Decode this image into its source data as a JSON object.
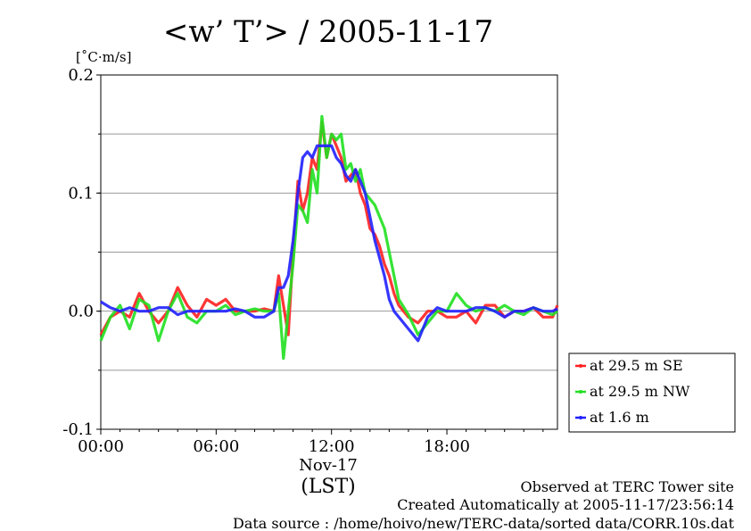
{
  "chart_data": {
    "type": "line",
    "title": "<w’ T’> / 2005-11-17",
    "ylabel": "[˚C·m/s]",
    "xlabel": "(LST)",
    "x_unit": "hour",
    "xlim": [
      0,
      23.75
    ],
    "ylim": [
      -0.1,
      0.2
    ],
    "y_ticks": [
      -0.1,
      0.0,
      0.1,
      0.2
    ],
    "y_tick_labels": [
      "-0.1",
      "0.0",
      "0.1",
      "0.2"
    ],
    "x_ticks": [
      0,
      6,
      12,
      18
    ],
    "x_tick_labels": [
      "00:00",
      "06:00",
      "12:00",
      "18:00"
    ],
    "x_date_label": "Nov-17",
    "grid": "horizontal",
    "legend_position": "right",
    "series": [
      {
        "name": "at 29.5 m SE",
        "color": "#ff2020",
        "x": [
          0,
          0.5,
          1,
          1.5,
          2,
          2.5,
          3,
          3.5,
          4,
          4.5,
          5,
          5.5,
          6,
          6.5,
          7,
          7.5,
          8,
          8.5,
          9,
          9.25,
          9.5,
          9.75,
          10,
          10.25,
          10.5,
          10.75,
          11,
          11.25,
          11.5,
          11.75,
          12,
          12.25,
          12.5,
          12.75,
          13,
          13.25,
          13.5,
          13.75,
          14,
          14.25,
          14.5,
          14.75,
          15,
          15.25,
          15.5,
          16,
          16.5,
          17,
          17.5,
          18,
          18.5,
          19,
          19.5,
          20,
          20.5,
          21,
          21.5,
          22,
          22.5,
          23,
          23.5,
          23.75
        ],
        "values": [
          -0.02,
          -0.005,
          0.0,
          -0.005,
          0.015,
          0.0,
          -0.01,
          0.0,
          0.02,
          0.005,
          -0.005,
          0.01,
          0.005,
          0.01,
          0.0,
          0.0,
          0.0,
          0.002,
          0.0,
          0.03,
          0.005,
          -0.02,
          0.05,
          0.11,
          0.085,
          0.1,
          0.13,
          0.12,
          0.16,
          0.13,
          0.15,
          0.14,
          0.13,
          0.11,
          0.115,
          0.12,
          0.1,
          0.09,
          0.07,
          0.065,
          0.055,
          0.04,
          0.03,
          0.015,
          0.005,
          -0.005,
          -0.01,
          0.0,
          0.0,
          -0.005,
          -0.005,
          0.0,
          -0.01,
          0.005,
          0.005,
          -0.005,
          0.0,
          0.0,
          0.003,
          -0.005,
          -0.005,
          0.005
        ]
      },
      {
        "name": "at 29.5 m NW",
        "color": "#20e020",
        "x": [
          0,
          0.5,
          1,
          1.5,
          2,
          2.5,
          3,
          3.5,
          4,
          4.5,
          5,
          5.5,
          6,
          6.5,
          7,
          7.5,
          8,
          8.5,
          9,
          9.25,
          9.5,
          9.75,
          10,
          10.25,
          10.5,
          10.75,
          11,
          11.25,
          11.5,
          11.75,
          12,
          12.25,
          12.5,
          12.75,
          13,
          13.25,
          13.5,
          13.75,
          14,
          14.25,
          14.5,
          14.75,
          15,
          15.25,
          15.5,
          16,
          16.5,
          17,
          17.5,
          18,
          18.5,
          19,
          19.5,
          20,
          20.5,
          21,
          21.5,
          22,
          22.5,
          23,
          23.5,
          23.75
        ],
        "values": [
          -0.025,
          -0.005,
          0.005,
          -0.015,
          0.01,
          0.005,
          -0.025,
          0.0,
          0.015,
          -0.005,
          -0.01,
          0.0,
          0.0,
          0.005,
          -0.003,
          0.0,
          0.002,
          0.0,
          0.0,
          0.015,
          -0.04,
          0.0,
          0.04,
          0.09,
          0.085,
          0.075,
          0.12,
          0.1,
          0.165,
          0.13,
          0.15,
          0.145,
          0.15,
          0.12,
          0.125,
          0.11,
          0.12,
          0.1,
          0.095,
          0.09,
          0.08,
          0.07,
          0.05,
          0.03,
          0.01,
          -0.003,
          -0.02,
          -0.01,
          0.0,
          0.0,
          0.015,
          0.005,
          0.0,
          0.003,
          0.0,
          0.005,
          0.0,
          -0.003,
          0.003,
          0.0,
          -0.003,
          0.0
        ]
      },
      {
        "name": "at 1.6 m",
        "color": "#2020ff",
        "x": [
          0,
          0.5,
          1,
          1.5,
          2,
          2.5,
          3,
          3.5,
          4,
          4.5,
          5,
          5.5,
          6,
          6.5,
          7,
          7.5,
          8,
          8.5,
          9,
          9.25,
          9.5,
          9.75,
          10,
          10.25,
          10.5,
          10.75,
          11,
          11.25,
          11.5,
          11.75,
          12,
          12.25,
          12.5,
          12.75,
          13,
          13.25,
          13.5,
          13.75,
          14,
          14.25,
          14.5,
          14.75,
          15,
          15.25,
          15.5,
          16,
          16.5,
          17,
          17.5,
          18,
          18.5,
          19,
          19.5,
          20,
          20.5,
          21,
          21.5,
          22,
          22.5,
          23,
          23.5,
          23.75
        ],
        "values": [
          0.008,
          0.003,
          0.0,
          0.003,
          0.0,
          0.0,
          0.003,
          0.003,
          -0.003,
          0.0,
          0.0,
          0.0,
          0.0,
          0.0,
          0.002,
          0.0,
          -0.005,
          -0.005,
          0.0,
          0.02,
          0.02,
          0.03,
          0.06,
          0.1,
          0.13,
          0.135,
          0.13,
          0.14,
          0.14,
          0.14,
          0.14,
          0.13,
          0.125,
          0.115,
          0.11,
          0.12,
          0.11,
          0.1,
          0.08,
          0.06,
          0.045,
          0.03,
          0.01,
          0.0,
          -0.005,
          -0.015,
          -0.025,
          -0.005,
          0.003,
          0.0,
          0.0,
          0.0,
          0.003,
          0.003,
          0.0,
          -0.005,
          0.0,
          0.0,
          0.003,
          0.0,
          0.0,
          0.002
        ]
      }
    ]
  },
  "footer": {
    "line1": "Observed at TERC Tower site",
    "line2": "Created Automatically at 2005-11-17/23:56:14",
    "line3": "Data source : /home/hoivo/new/TERC-data/sorted  data/CORR.10s.dat"
  }
}
